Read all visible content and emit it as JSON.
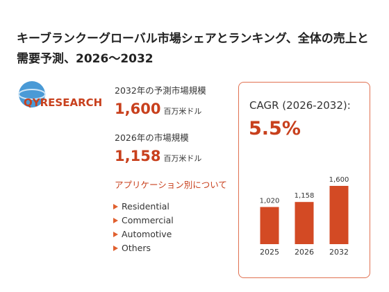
{
  "header": {
    "title": "キーブランクーグローバル市場シェアとランキング、全体の売上と需要予測、2026～2032"
  },
  "logo": {
    "text": "QYRESEARCH"
  },
  "stats": [
    {
      "label": "2032年の予測市場規模",
      "value": "1,600",
      "unit": "百万米ドル"
    },
    {
      "label": "2026年の市場規模",
      "value": "1,158",
      "unit": "百万米ドル"
    }
  ],
  "application": {
    "heading": "アプリケーション別について",
    "items": [
      "Residential",
      "Commercial",
      "Automotive",
      "Others"
    ]
  },
  "cagr": {
    "label": "CAGR (2026-2032):",
    "value": "5.5%"
  },
  "chart_data": {
    "type": "bar",
    "categories": [
      "2025",
      "2026",
      "2032"
    ],
    "values": [
      1020,
      1158,
      1600
    ],
    "value_labels": [
      "1,020",
      "1,158",
      "1,600"
    ],
    "color": "#d34a24"
  }
}
